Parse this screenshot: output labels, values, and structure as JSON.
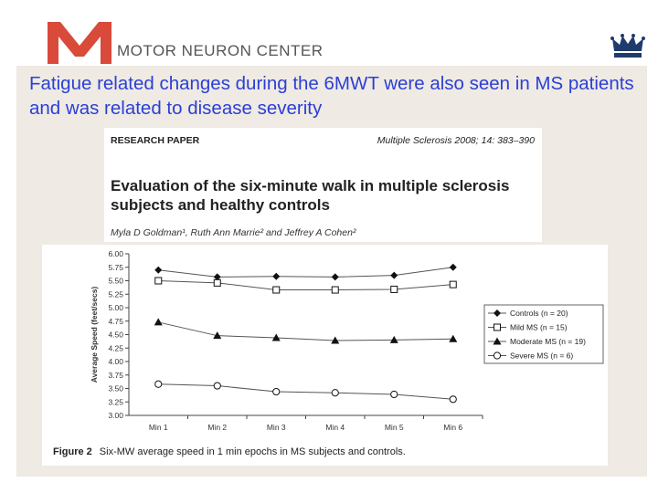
{
  "header": {
    "brand": "MOTOR NEURON CENTER",
    "logo": "mnc-logo",
    "crown": "crown-icon"
  },
  "slide": {
    "title": "Fatigue related changes during the 6MWT were also seen in MS patients and was related to disease severity"
  },
  "paper": {
    "type": "RESEARCH PAPER",
    "journal": "Multiple Sclerosis 2008; 14: 383–390",
    "title": "Evaluation of the six-minute walk in multiple sclerosis subjects and healthy controls",
    "authors": "Myla D Goldman¹, Ruth Ann Marrie² and Jeffrey A Cohen²"
  },
  "figure": {
    "label": "Figure 2",
    "caption": "Six-MW average speed in 1 min epochs in MS subjects and controls."
  },
  "chart_data": {
    "type": "line",
    "title": "",
    "xlabel": "",
    "ylabel": "Average Speed (feet/secs)",
    "categories": [
      "Min 1",
      "Min 2",
      "Min 3",
      "Min 4",
      "Min 5",
      "Min 6"
    ],
    "ylim": [
      3.0,
      6.0
    ],
    "yticks": [
      "6.00",
      "5.75",
      "5.50",
      "5.25",
      "5.00",
      "4.75",
      "4.50",
      "4.25",
      "4.00",
      "3.75",
      "3.50",
      "3.25",
      "3.00"
    ],
    "legend_position": "right",
    "series": [
      {
        "name": "Controls (n = 20)",
        "marker": "diamond",
        "values": [
          5.7,
          5.57,
          5.58,
          5.57,
          5.6,
          5.75
        ]
      },
      {
        "name": "Mild MS (n = 15)",
        "marker": "square-open",
        "values": [
          5.5,
          5.46,
          5.33,
          5.33,
          5.34,
          5.43
        ]
      },
      {
        "name": "Moderate MS (n = 19)",
        "marker": "triangle",
        "values": [
          4.73,
          4.48,
          4.44,
          4.39,
          4.4,
          4.42
        ]
      },
      {
        "name": "Severe MS (n = 6)",
        "marker": "circle-open",
        "values": [
          3.58,
          3.55,
          3.44,
          3.42,
          3.39,
          3.3
        ]
      }
    ],
    "colors": {
      "line": "#555555",
      "marker": "#111111",
      "axis": "#444444"
    }
  }
}
